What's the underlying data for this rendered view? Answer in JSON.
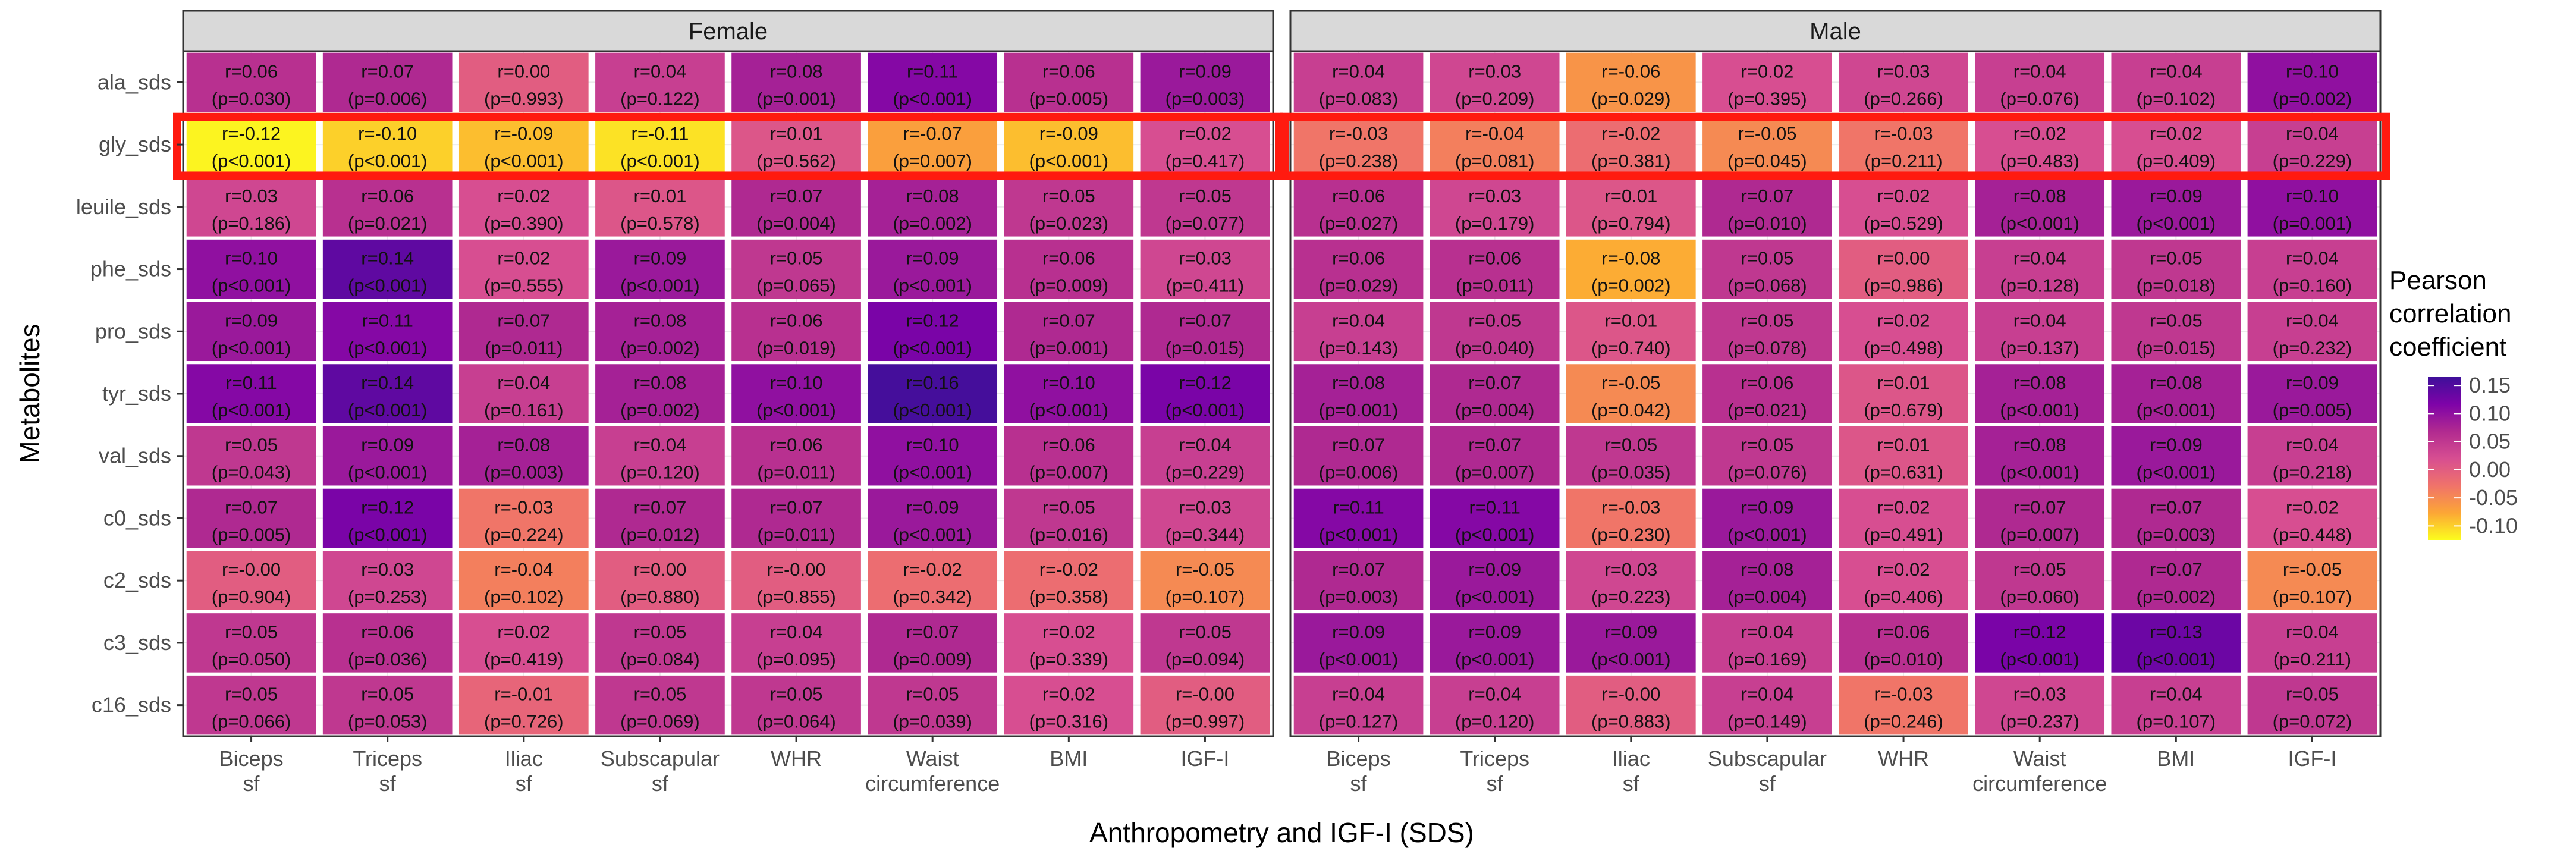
{
  "chart_data": {
    "type": "heatmap",
    "xlabel": "Anthropometry and IGF-I (SDS)",
    "ylabel": "Metabolites",
    "panels": [
      "Female",
      "Male"
    ],
    "x_categories": [
      [
        "Biceps",
        "sf"
      ],
      [
        "Triceps",
        "sf"
      ],
      [
        "Iliac",
        "sf"
      ],
      [
        "Subscapular",
        "sf"
      ],
      [
        "WHR"
      ],
      [
        "Waist",
        "circumference"
      ],
      [
        "BMI"
      ],
      [
        "IGF-I"
      ]
    ],
    "y_categories": [
      "ala_sds",
      "gly_sds",
      "leuile_sds",
      "phe_sds",
      "pro_sds",
      "tyr_sds",
      "val_sds",
      "c0_sds",
      "c2_sds",
      "c3_sds",
      "c16_sds"
    ],
    "highlighted_row": "gly_sds",
    "legend": {
      "title": [
        "Pearson",
        "correlation",
        "coefficient"
      ],
      "ticks": [
        "0.15",
        "0.10",
        "0.05",
        "0.00",
        "-0.05",
        "-0.10"
      ],
      "tick_values": [
        0.15,
        0.1,
        0.05,
        0.0,
        -0.05,
        -0.1
      ],
      "range": [
        -0.125,
        0.165
      ],
      "colors": [
        "#fcfd1d",
        "#fca636",
        "#f0736a",
        "#d74e91",
        "#b12a90",
        "#7e03a8",
        "#3e0f9a"
      ]
    },
    "cells": {
      "Female": [
        [
          [
            "r=0.06",
            "(p=0.030)"
          ],
          [
            "r=0.07",
            "(p=0.006)"
          ],
          [
            "r=0.00",
            "(p=0.993)"
          ],
          [
            "r=0.04",
            "(p=0.122)"
          ],
          [
            "r=0.08",
            "(p=0.001)"
          ],
          [
            "r=0.11",
            "(p<0.001)"
          ],
          [
            "r=0.06",
            "(p=0.005)"
          ],
          [
            "r=0.09",
            "(p=0.003)"
          ]
        ],
        [
          [
            "r=-0.12",
            "(p<0.001)"
          ],
          [
            "r=-0.10",
            "(p<0.001)"
          ],
          [
            "r=-0.09",
            "(p<0.001)"
          ],
          [
            "r=-0.11",
            "(p<0.001)"
          ],
          [
            "r=0.01",
            "(p=0.562)"
          ],
          [
            "r=-0.07",
            "(p=0.007)"
          ],
          [
            "r=-0.09",
            "(p<0.001)"
          ],
          [
            "r=0.02",
            "(p=0.417)"
          ]
        ],
        [
          [
            "r=0.03",
            "(p=0.186)"
          ],
          [
            "r=0.06",
            "(p=0.021)"
          ],
          [
            "r=0.02",
            "(p=0.390)"
          ],
          [
            "r=0.01",
            "(p=0.578)"
          ],
          [
            "r=0.07",
            "(p=0.004)"
          ],
          [
            "r=0.08",
            "(p=0.002)"
          ],
          [
            "r=0.05",
            "(p=0.023)"
          ],
          [
            "r=0.05",
            "(p=0.077)"
          ]
        ],
        [
          [
            "r=0.10",
            "(p<0.001)"
          ],
          [
            "r=0.14",
            "(p<0.001)"
          ],
          [
            "r=0.02",
            "(p=0.555)"
          ],
          [
            "r=0.09",
            "(p<0.001)"
          ],
          [
            "r=0.05",
            "(p=0.065)"
          ],
          [
            "r=0.09",
            "(p<0.001)"
          ],
          [
            "r=0.06",
            "(p=0.009)"
          ],
          [
            "r=0.03",
            "(p=0.411)"
          ]
        ],
        [
          [
            "r=0.09",
            "(p<0.001)"
          ],
          [
            "r=0.11",
            "(p<0.001)"
          ],
          [
            "r=0.07",
            "(p=0.011)"
          ],
          [
            "r=0.08",
            "(p=0.002)"
          ],
          [
            "r=0.06",
            "(p=0.019)"
          ],
          [
            "r=0.12",
            "(p<0.001)"
          ],
          [
            "r=0.07",
            "(p=0.001)"
          ],
          [
            "r=0.07",
            "(p=0.015)"
          ]
        ],
        [
          [
            "r=0.11",
            "(p<0.001)"
          ],
          [
            "r=0.14",
            "(p<0.001)"
          ],
          [
            "r=0.04",
            "(p=0.161)"
          ],
          [
            "r=0.08",
            "(p=0.002)"
          ],
          [
            "r=0.10",
            "(p<0.001)"
          ],
          [
            "r=0.16",
            "(p<0.001)"
          ],
          [
            "r=0.10",
            "(p<0.001)"
          ],
          [
            "r=0.12",
            "(p<0.001)"
          ]
        ],
        [
          [
            "r=0.05",
            "(p=0.043)"
          ],
          [
            "r=0.09",
            "(p<0.001)"
          ],
          [
            "r=0.08",
            "(p=0.003)"
          ],
          [
            "r=0.04",
            "(p=0.120)"
          ],
          [
            "r=0.06",
            "(p=0.011)"
          ],
          [
            "r=0.10",
            "(p<0.001)"
          ],
          [
            "r=0.06",
            "(p=0.007)"
          ],
          [
            "r=0.04",
            "(p=0.229)"
          ]
        ],
        [
          [
            "r=0.07",
            "(p=0.005)"
          ],
          [
            "r=0.12",
            "(p<0.001)"
          ],
          [
            "r=-0.03",
            "(p=0.224)"
          ],
          [
            "r=0.07",
            "(p=0.012)"
          ],
          [
            "r=0.07",
            "(p=0.011)"
          ],
          [
            "r=0.09",
            "(p<0.001)"
          ],
          [
            "r=0.05",
            "(p=0.016)"
          ],
          [
            "r=0.03",
            "(p=0.344)"
          ]
        ],
        [
          [
            "r=-0.00",
            "(p=0.904)"
          ],
          [
            "r=0.03",
            "(p=0.253)"
          ],
          [
            "r=-0.04",
            "(p=0.102)"
          ],
          [
            "r=0.00",
            "(p=0.880)"
          ],
          [
            "r=-0.00",
            "(p=0.855)"
          ],
          [
            "r=-0.02",
            "(p=0.342)"
          ],
          [
            "r=-0.02",
            "(p=0.358)"
          ],
          [
            "r=-0.05",
            "(p=0.107)"
          ]
        ],
        [
          [
            "r=0.05",
            "(p=0.050)"
          ],
          [
            "r=0.06",
            "(p=0.036)"
          ],
          [
            "r=0.02",
            "(p=0.419)"
          ],
          [
            "r=0.05",
            "(p=0.084)"
          ],
          [
            "r=0.04",
            "(p=0.095)"
          ],
          [
            "r=0.07",
            "(p=0.009)"
          ],
          [
            "r=0.02",
            "(p=0.339)"
          ],
          [
            "r=0.05",
            "(p=0.094)"
          ]
        ],
        [
          [
            "r=0.05",
            "(p=0.066)"
          ],
          [
            "r=0.05",
            "(p=0.053)"
          ],
          [
            "r=-0.01",
            "(p=0.726)"
          ],
          [
            "r=0.05",
            "(p=0.069)"
          ],
          [
            "r=0.05",
            "(p=0.064)"
          ],
          [
            "r=0.05",
            "(p=0.039)"
          ],
          [
            "r=0.02",
            "(p=0.316)"
          ],
          [
            "r=-0.00",
            "(p=0.997)"
          ]
        ]
      ],
      "Male": [
        [
          [
            "r=0.04",
            "(p=0.083)"
          ],
          [
            "r=0.03",
            "(p=0.209)"
          ],
          [
            "r=-0.06",
            "(p=0.029)"
          ],
          [
            "r=0.02",
            "(p=0.395)"
          ],
          [
            "r=0.03",
            "(p=0.266)"
          ],
          [
            "r=0.04",
            "(p=0.076)"
          ],
          [
            "r=0.04",
            "(p=0.102)"
          ],
          [
            "r=0.10",
            "(p=0.002)"
          ]
        ],
        [
          [
            "r=-0.03",
            "(p=0.238)"
          ],
          [
            "r=-0.04",
            "(p=0.081)"
          ],
          [
            "r=-0.02",
            "(p=0.381)"
          ],
          [
            "r=-0.05",
            "(p=0.045)"
          ],
          [
            "r=-0.03",
            "(p=0.211)"
          ],
          [
            "r=0.02",
            "(p=0.483)"
          ],
          [
            "r=0.02",
            "(p=0.409)"
          ],
          [
            "r=0.04",
            "(p=0.229)"
          ]
        ],
        [
          [
            "r=0.06",
            "(p=0.027)"
          ],
          [
            "r=0.03",
            "(p=0.179)"
          ],
          [
            "r=0.01",
            "(p=0.794)"
          ],
          [
            "r=0.07",
            "(p=0.010)"
          ],
          [
            "r=0.02",
            "(p=0.529)"
          ],
          [
            "r=0.08",
            "(p<0.001)"
          ],
          [
            "r=0.09",
            "(p<0.001)"
          ],
          [
            "r=0.10",
            "(p=0.001)"
          ]
        ],
        [
          [
            "r=0.06",
            "(p=0.029)"
          ],
          [
            "r=0.06",
            "(p=0.011)"
          ],
          [
            "r=-0.08",
            "(p=0.002)"
          ],
          [
            "r=0.05",
            "(p=0.068)"
          ],
          [
            "r=0.00",
            "(p=0.986)"
          ],
          [
            "r=0.04",
            "(p=0.128)"
          ],
          [
            "r=0.05",
            "(p=0.018)"
          ],
          [
            "r=0.04",
            "(p=0.160)"
          ]
        ],
        [
          [
            "r=0.04",
            "(p=0.143)"
          ],
          [
            "r=0.05",
            "(p=0.040)"
          ],
          [
            "r=0.01",
            "(p=0.740)"
          ],
          [
            "r=0.05",
            "(p=0.078)"
          ],
          [
            "r=0.02",
            "(p=0.498)"
          ],
          [
            "r=0.04",
            "(p=0.137)"
          ],
          [
            "r=0.05",
            "(p=0.015)"
          ],
          [
            "r=0.04",
            "(p=0.232)"
          ]
        ],
        [
          [
            "r=0.08",
            "(p=0.001)"
          ],
          [
            "r=0.07",
            "(p=0.004)"
          ],
          [
            "r=-0.05",
            "(p=0.042)"
          ],
          [
            "r=0.06",
            "(p=0.021)"
          ],
          [
            "r=0.01",
            "(p=0.679)"
          ],
          [
            "r=0.08",
            "(p<0.001)"
          ],
          [
            "r=0.08",
            "(p<0.001)"
          ],
          [
            "r=0.09",
            "(p=0.005)"
          ]
        ],
        [
          [
            "r=0.07",
            "(p=0.006)"
          ],
          [
            "r=0.07",
            "(p=0.007)"
          ],
          [
            "r=0.05",
            "(p=0.035)"
          ],
          [
            "r=0.05",
            "(p=0.076)"
          ],
          [
            "r=0.01",
            "(p=0.631)"
          ],
          [
            "r=0.08",
            "(p<0.001)"
          ],
          [
            "r=0.09",
            "(p<0.001)"
          ],
          [
            "r=0.04",
            "(p=0.218)"
          ]
        ],
        [
          [
            "r=0.11",
            "(p<0.001)"
          ],
          [
            "r=0.11",
            "(p<0.001)"
          ],
          [
            "r=-0.03",
            "(p=0.230)"
          ],
          [
            "r=0.09",
            "(p<0.001)"
          ],
          [
            "r=0.02",
            "(p=0.491)"
          ],
          [
            "r=0.07",
            "(p=0.007)"
          ],
          [
            "r=0.07",
            "(p=0.003)"
          ],
          [
            "r=0.02",
            "(p=0.448)"
          ]
        ],
        [
          [
            "r=0.07",
            "(p=0.003)"
          ],
          [
            "r=0.09",
            "(p<0.001)"
          ],
          [
            "r=0.03",
            "(p=0.223)"
          ],
          [
            "r=0.08",
            "(p=0.004)"
          ],
          [
            "r=0.02",
            "(p=0.406)"
          ],
          [
            "r=0.05",
            "(p=0.060)"
          ],
          [
            "r=0.07",
            "(p=0.002)"
          ],
          [
            "r=-0.05",
            "(p=0.107)"
          ]
        ],
        [
          [
            "r=0.09",
            "(p<0.001)"
          ],
          [
            "r=0.09",
            "(p<0.001)"
          ],
          [
            "r=0.09",
            "(p<0.001)"
          ],
          [
            "r=0.04",
            "(p=0.169)"
          ],
          [
            "r=0.06",
            "(p=0.010)"
          ],
          [
            "r=0.12",
            "(p<0.001)"
          ],
          [
            "r=0.13",
            "(p<0.001)"
          ],
          [
            "r=0.04",
            "(p=0.211)"
          ]
        ],
        [
          [
            "r=0.04",
            "(p=0.127)"
          ],
          [
            "r=0.04",
            "(p=0.120)"
          ],
          [
            "r=-0.00",
            "(p=0.883)"
          ],
          [
            "r=0.04",
            "(p=0.149)"
          ],
          [
            "r=-0.03",
            "(p=0.246)"
          ],
          [
            "r=0.03",
            "(p=0.237)"
          ],
          [
            "r=0.04",
            "(p=0.107)"
          ],
          [
            "r=0.05",
            "(p=0.072)"
          ]
        ]
      ]
    }
  }
}
